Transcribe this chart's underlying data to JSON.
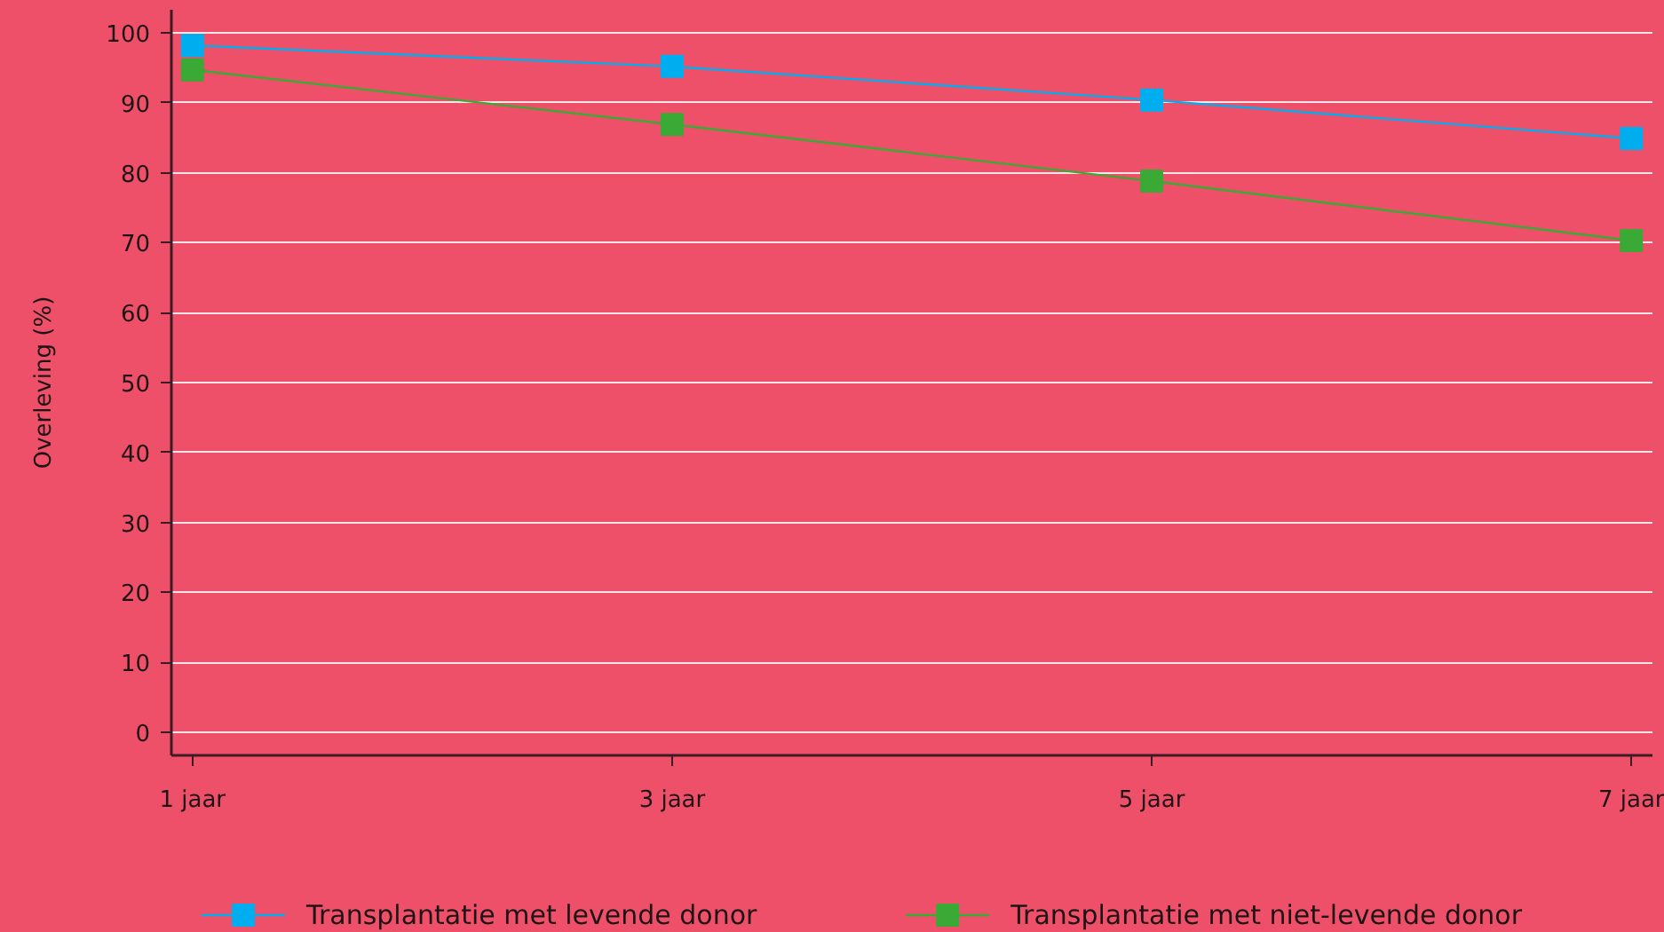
{
  "chart_data": {
    "type": "line",
    "ylabel": "Overleving (%)",
    "categories": [
      "1 jaar",
      "3 jaar",
      "5 jaar",
      "7 jaar"
    ],
    "series": [
      {
        "name": "Transplantatie met levende donor",
        "color": "#00aeef",
        "values": [
          98.2,
          95.2,
          90.4,
          84.9
        ]
      },
      {
        "name": "Transplantatie met niet-levende donor",
        "color": "#3aa935",
        "values": [
          94.7,
          86.9,
          78.8,
          70.3
        ]
      }
    ],
    "ylim": [
      -3.3,
      103.3
    ],
    "yticks": [
      0,
      10,
      20,
      30,
      40,
      50,
      60,
      70,
      80,
      90,
      100
    ],
    "grid": "y",
    "legend": "bottom",
    "marker": "square",
    "line_style": "solid"
  }
}
